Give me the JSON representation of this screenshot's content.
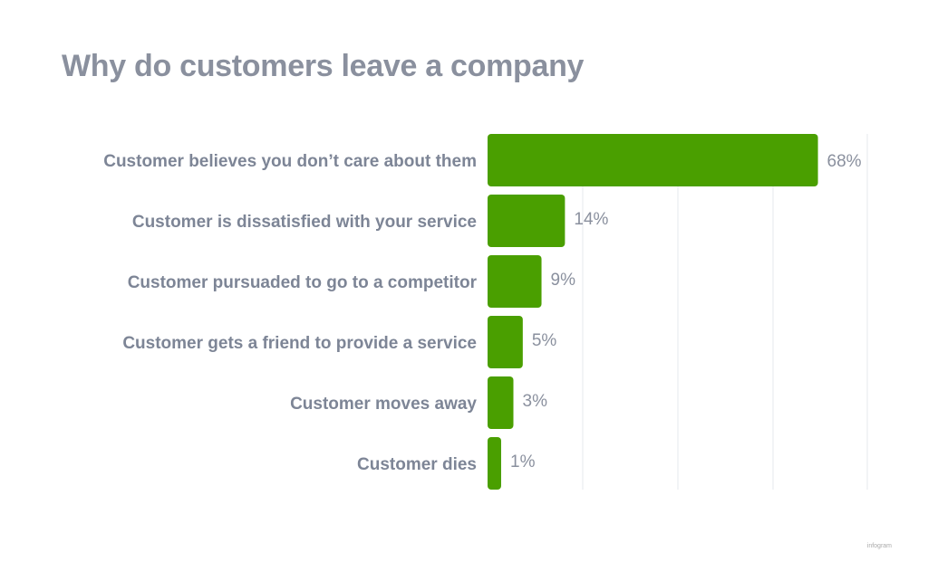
{
  "chart_data": {
    "type": "bar",
    "orientation": "horizontal",
    "title": "Why do customers leave a company",
    "categories": [
      "Customer believes you don’t care about them",
      "Customer is dissatisfied with your service",
      "Customer pursuaded to go to a competitor",
      "Customer gets a friend to provide a service",
      "Customer moves away",
      "Customer dies"
    ],
    "values": [
      68,
      14,
      9,
      5,
      3,
      1
    ],
    "value_labels": [
      "68%",
      "14%",
      "9%",
      "5%",
      "3%",
      "1%"
    ],
    "xlabel": "",
    "ylabel": "",
    "grid": true,
    "legend": "none",
    "bar_color": "#4a9f00"
  },
  "watermark": "infogram"
}
